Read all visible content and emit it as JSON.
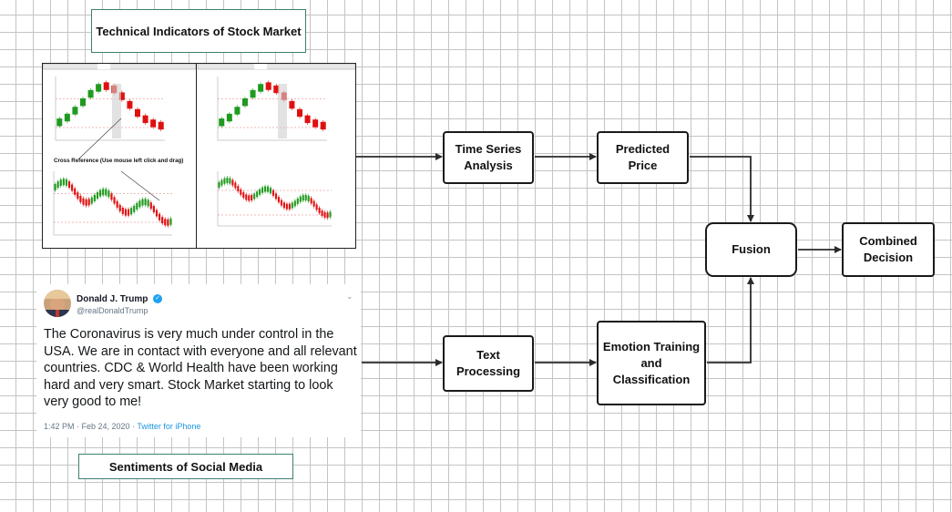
{
  "titles": {
    "technical": "Technical Indicators of Stock Market",
    "social": "Sentiments of Social Media"
  },
  "chart_panel": {
    "cross_reference_label": "Cross Reference (Use mouse left click and drag)"
  },
  "tweet": {
    "name": "Donald J. Trump",
    "handle": "@realDonaldTrump",
    "text": "The Coronavirus is very much under control in the USA. We are in contact with everyone and all relevant countries. CDC & World Health have been working hard and very smart. Stock Market starting to look very good to me!",
    "time": "1:42 PM · Feb 24, 2020 ·",
    "source": "Twitter for iPhone"
  },
  "nodes": {
    "time_series": "Time Series Analysis",
    "predicted_price": "Predicted Price",
    "text_processing": "Text Processing",
    "emotion": "Emotion Training and Classification",
    "fusion": "Fusion",
    "combined": "Combined Decision"
  },
  "colors": {
    "arrow": "#2b2b2b",
    "title_border": "#3f7f70",
    "candle_up": "#1f9a1f",
    "candle_down": "#e01010",
    "verified": "#1da1f2"
  }
}
